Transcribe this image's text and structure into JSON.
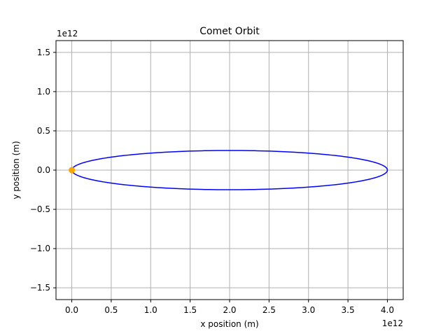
{
  "chart_data": {
    "type": "line",
    "title": "Comet Orbit",
    "xlabel": "x position (m)",
    "ylabel": "y position (m)",
    "x_offset_label": "1e12",
    "y_offset_label": "1e12",
    "xlim": [
      -0.2,
      4.2
    ],
    "ylim": [
      -1.65,
      1.65
    ],
    "x_ticks": [
      0.0,
      0.5,
      1.0,
      1.5,
      2.0,
      2.5,
      3.0,
      3.5,
      4.0
    ],
    "x_tick_labels": [
      "0.0",
      "0.5",
      "1.0",
      "1.5",
      "2.0",
      "2.5",
      "3.0",
      "3.5",
      "4.0"
    ],
    "y_ticks": [
      -1.5,
      -1.0,
      -0.5,
      0.0,
      0.5,
      1.0,
      1.5
    ],
    "y_tick_labels": [
      "−1.5",
      "−1.0",
      "−0.5",
      "0.0",
      "0.5",
      "1.0",
      "1.5"
    ],
    "grid": true,
    "series": [
      {
        "type": "ellipse-orbit",
        "color": "#0000ff",
        "center_x": 2.0,
        "center_y": 0.0,
        "semi_major": 2.0,
        "semi_minor": 0.25
      },
      {
        "type": "point",
        "color": "#ffa500",
        "x": 0.0,
        "y": 0.0
      }
    ]
  }
}
